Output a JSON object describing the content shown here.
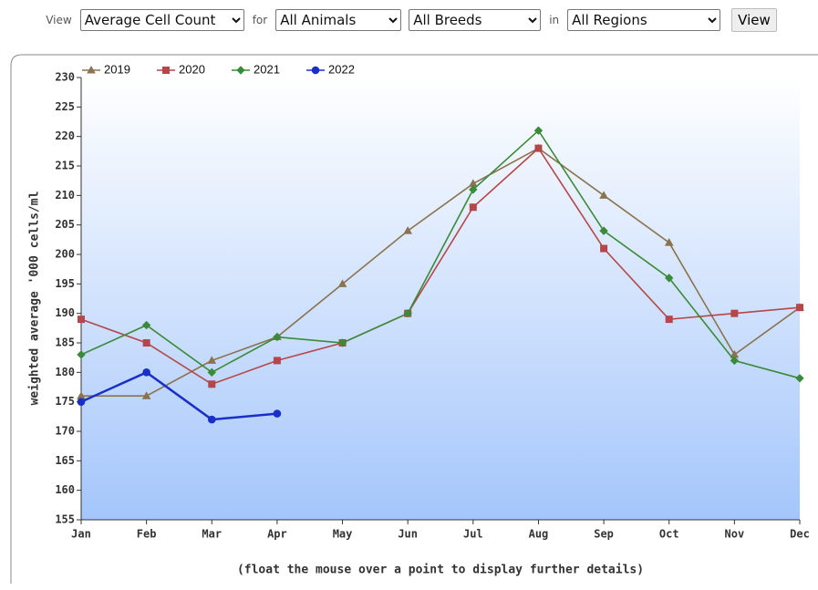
{
  "controls": {
    "view_label": "View",
    "measure": "Average Cell Count",
    "for_label": "for",
    "animals": "All Animals",
    "breeds": "All Breeds",
    "in_label": "in",
    "regions": "All Regions",
    "button": "View"
  },
  "chart_data": {
    "type": "line",
    "y_label": "weighted average '000 cells/ml",
    "note": "(float the mouse over a point to display further details)",
    "categories": [
      "Jan",
      "Feb",
      "Mar",
      "Apr",
      "May",
      "Jun",
      "Jul",
      "Aug",
      "Sep",
      "Oct",
      "Nov",
      "Dec"
    ],
    "series": [
      {
        "name": "2019",
        "color": "#8a7350",
        "marker": "triangle",
        "values": [
          176,
          176,
          182,
          186,
          195,
          204,
          212,
          218,
          210,
          202,
          183,
          191
        ]
      },
      {
        "name": "2020",
        "color": "#b5474a",
        "marker": "square",
        "values": [
          189,
          185,
          178,
          182,
          185,
          190,
          208,
          218,
          201,
          189,
          190,
          191
        ]
      },
      {
        "name": "2021",
        "color": "#3a8a3a",
        "marker": "diamond",
        "values": [
          183,
          188,
          180,
          186,
          185,
          190,
          211,
          221,
          204,
          196,
          182,
          179
        ]
      },
      {
        "name": "2022",
        "color": "#1a2fc8",
        "marker": "circle",
        "values": [
          175,
          180,
          172,
          173,
          null,
          null,
          null,
          null,
          null,
          null,
          null,
          null
        ]
      }
    ],
    "ylim": [
      155,
      230
    ],
    "yticks": [
      155,
      160,
      165,
      170,
      175,
      180,
      185,
      190,
      195,
      200,
      205,
      210,
      215,
      220,
      225,
      230
    ]
  }
}
